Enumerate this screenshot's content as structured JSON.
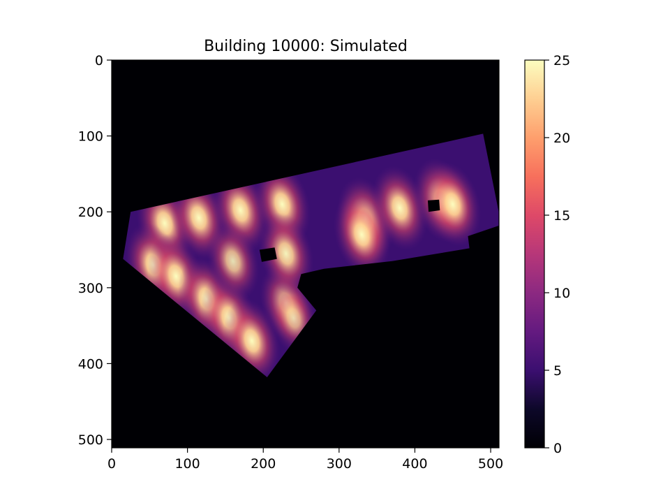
{
  "chart_data": {
    "type": "heatmap",
    "title": "Building 10000: Simulated",
    "xlabel": "",
    "ylabel": "",
    "xlim": [
      0,
      511
    ],
    "ylim": [
      511,
      0
    ],
    "x_ticks": [
      0,
      100,
      200,
      300,
      400,
      500
    ],
    "y_ticks": [
      0,
      100,
      200,
      300,
      400,
      500
    ],
    "colorbar": {
      "colormap": "magma",
      "range": [
        0,
        25
      ],
      "ticks": [
        0,
        5,
        10,
        15,
        20,
        25
      ]
    },
    "building_outline": [
      [
        25,
        200
      ],
      [
        490,
        97
      ],
      [
        514,
        217
      ],
      [
        470,
        232
      ],
      [
        472,
        248
      ],
      [
        370,
        265
      ],
      [
        280,
        275
      ],
      [
        250,
        282
      ],
      [
        245,
        300
      ],
      [
        270,
        330
      ],
      [
        205,
        418
      ],
      [
        15,
        262
      ]
    ],
    "dark_holes": [
      [
        [
          195,
          250
        ],
        [
          215,
          247
        ],
        [
          218,
          262
        ],
        [
          198,
          266
        ]
      ],
      [
        [
          417,
          185
        ],
        [
          432,
          184
        ],
        [
          433,
          198
        ],
        [
          418,
          200
        ]
      ]
    ],
    "hotspots": [
      {
        "x": 70,
        "y": 215,
        "value": 25
      },
      {
        "x": 115,
        "y": 208,
        "value": 25
      },
      {
        "x": 170,
        "y": 198,
        "value": 25
      },
      {
        "x": 225,
        "y": 190,
        "value": 25
      },
      {
        "x": 335,
        "y": 210,
        "value": 25
      },
      {
        "x": 380,
        "y": 195,
        "value": 25
      },
      {
        "x": 435,
        "y": 185,
        "value": 25
      },
      {
        "x": 450,
        "y": 190,
        "value": 25
      },
      {
        "x": 330,
        "y": 230,
        "value": 25
      },
      {
        "x": 55,
        "y": 270,
        "value": 25
      },
      {
        "x": 85,
        "y": 285,
        "value": 25
      },
      {
        "x": 125,
        "y": 315,
        "value": 25
      },
      {
        "x": 155,
        "y": 340,
        "value": 25
      },
      {
        "x": 185,
        "y": 370,
        "value": 25
      },
      {
        "x": 230,
        "y": 320,
        "value": 22
      },
      {
        "x": 240,
        "y": 340,
        "value": 20
      },
      {
        "x": 160,
        "y": 265,
        "value": 22
      },
      {
        "x": 230,
        "y": 255,
        "value": 24
      }
    ]
  }
}
